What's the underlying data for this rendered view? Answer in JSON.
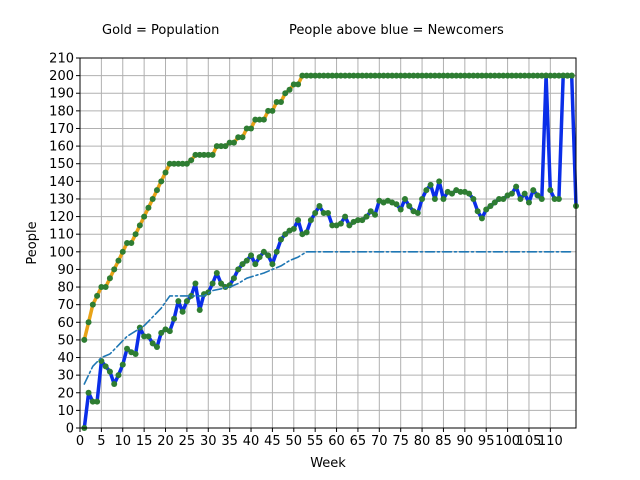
{
  "chart_data": {
    "type": "line",
    "annotations": [
      "Gold = Population",
      "People above blue = Newcomers"
    ],
    "xlabel": "Week",
    "ylabel": "People",
    "xlim": [
      0,
      116
    ],
    "ylim": [
      0,
      210
    ],
    "xticks": [
      0,
      5,
      10,
      15,
      20,
      25,
      30,
      35,
      40,
      45,
      50,
      55,
      60,
      65,
      70,
      75,
      80,
      85,
      90,
      95,
      100,
      105,
      110
    ],
    "yticks": [
      0,
      10,
      20,
      30,
      40,
      50,
      60,
      70,
      80,
      90,
      100,
      110,
      120,
      130,
      140,
      150,
      160,
      170,
      180,
      190,
      200,
      210
    ],
    "grid": true,
    "series": [
      {
        "role": "population",
        "color": "#e8a317",
        "marker_color": "#2e7d32",
        "points": [
          [
            1,
            50
          ],
          [
            2,
            60
          ],
          [
            3,
            70
          ],
          [
            4,
            75
          ],
          [
            5,
            80
          ],
          [
            6,
            80
          ],
          [
            7,
            85
          ],
          [
            8,
            90
          ],
          [
            9,
            95
          ],
          [
            10,
            100
          ],
          [
            11,
            105
          ],
          [
            12,
            105
          ],
          [
            13,
            110
          ],
          [
            14,
            115
          ],
          [
            15,
            120
          ],
          [
            16,
            125
          ],
          [
            17,
            130
          ],
          [
            18,
            135
          ],
          [
            19,
            140
          ],
          [
            20,
            145
          ],
          [
            21,
            150
          ],
          [
            22,
            150
          ],
          [
            23,
            150
          ],
          [
            24,
            150
          ],
          [
            25,
            150
          ],
          [
            26,
            152
          ],
          [
            27,
            155
          ],
          [
            28,
            155
          ],
          [
            29,
            155
          ],
          [
            30,
            155
          ],
          [
            31,
            155
          ],
          [
            32,
            160
          ],
          [
            33,
            160
          ],
          [
            34,
            160
          ],
          [
            35,
            162
          ],
          [
            36,
            162
          ],
          [
            37,
            165
          ],
          [
            38,
            165
          ],
          [
            39,
            170
          ],
          [
            40,
            170
          ],
          [
            41,
            175
          ],
          [
            42,
            175
          ],
          [
            43,
            175
          ],
          [
            44,
            180
          ],
          [
            45,
            180
          ],
          [
            46,
            185
          ],
          [
            47,
            185
          ],
          [
            48,
            190
          ],
          [
            49,
            192
          ],
          [
            50,
            195
          ],
          [
            51,
            195
          ],
          [
            52,
            200
          ],
          [
            53,
            200
          ],
          [
            54,
            200
          ],
          [
            55,
            200
          ],
          [
            56,
            200
          ],
          [
            57,
            200
          ],
          [
            58,
            200
          ],
          [
            59,
            200
          ],
          [
            60,
            200
          ],
          [
            61,
            200
          ],
          [
            62,
            200
          ],
          [
            63,
            200
          ],
          [
            64,
            200
          ],
          [
            65,
            200
          ],
          [
            66,
            200
          ],
          [
            67,
            200
          ],
          [
            68,
            200
          ],
          [
            69,
            200
          ],
          [
            70,
            200
          ],
          [
            71,
            200
          ],
          [
            72,
            200
          ],
          [
            73,
            200
          ],
          [
            74,
            200
          ],
          [
            75,
            200
          ],
          [
            76,
            200
          ],
          [
            77,
            200
          ],
          [
            78,
            200
          ],
          [
            79,
            200
          ],
          [
            80,
            200
          ],
          [
            81,
            200
          ],
          [
            82,
            200
          ],
          [
            83,
            200
          ],
          [
            84,
            200
          ],
          [
            85,
            200
          ],
          [
            86,
            200
          ],
          [
            87,
            200
          ],
          [
            88,
            200
          ],
          [
            89,
            200
          ],
          [
            90,
            200
          ],
          [
            91,
            200
          ],
          [
            92,
            200
          ],
          [
            93,
            200
          ],
          [
            94,
            200
          ],
          [
            95,
            200
          ],
          [
            96,
            200
          ],
          [
            97,
            200
          ],
          [
            98,
            200
          ],
          [
            99,
            200
          ],
          [
            100,
            200
          ],
          [
            101,
            200
          ],
          [
            102,
            200
          ],
          [
            103,
            200
          ],
          [
            104,
            200
          ],
          [
            105,
            200
          ],
          [
            106,
            200
          ],
          [
            107,
            200
          ],
          [
            108,
            200
          ],
          [
            109,
            200
          ],
          [
            110,
            200
          ],
          [
            111,
            200
          ],
          [
            112,
            200
          ],
          [
            113,
            200
          ],
          [
            114,
            200
          ],
          [
            115,
            200
          ]
        ]
      },
      {
        "role": "blue-line",
        "color": "#0a2ee8",
        "marker_color": "#2e7d32",
        "points": [
          [
            1,
            0
          ],
          [
            2,
            20
          ],
          [
            3,
            15
          ],
          [
            4,
            15
          ],
          [
            5,
            38
          ],
          [
            6,
            35
          ],
          [
            7,
            32
          ],
          [
            8,
            25
          ],
          [
            9,
            30
          ],
          [
            10,
            36
          ],
          [
            11,
            45
          ],
          [
            12,
            43
          ],
          [
            13,
            42
          ],
          [
            14,
            57
          ],
          [
            15,
            52
          ],
          [
            16,
            52
          ],
          [
            17,
            48
          ],
          [
            18,
            46
          ],
          [
            19,
            54
          ],
          [
            20,
            56
          ],
          [
            21,
            55
          ],
          [
            22,
            62
          ],
          [
            23,
            72
          ],
          [
            24,
            66
          ],
          [
            25,
            72
          ],
          [
            26,
            75
          ],
          [
            27,
            82
          ],
          [
            28,
            67
          ],
          [
            29,
            76
          ],
          [
            30,
            77
          ],
          [
            31,
            82
          ],
          [
            32,
            88
          ],
          [
            33,
            82
          ],
          [
            34,
            80
          ],
          [
            35,
            81
          ],
          [
            36,
            85
          ],
          [
            37,
            90
          ],
          [
            38,
            93
          ],
          [
            39,
            95
          ],
          [
            40,
            98
          ],
          [
            41,
            93
          ],
          [
            42,
            97
          ],
          [
            43,
            100
          ],
          [
            44,
            98
          ],
          [
            45,
            93
          ],
          [
            46,
            100
          ],
          [
            47,
            107
          ],
          [
            48,
            110
          ],
          [
            49,
            112
          ],
          [
            50,
            113
          ],
          [
            51,
            118
          ],
          [
            52,
            110
          ],
          [
            53,
            111
          ],
          [
            54,
            118
          ],
          [
            55,
            122
          ],
          [
            56,
            126
          ],
          [
            57,
            122
          ],
          [
            58,
            122
          ],
          [
            59,
            115
          ],
          [
            60,
            115
          ],
          [
            61,
            116
          ],
          [
            62,
            120
          ],
          [
            63,
            115
          ],
          [
            64,
            117
          ],
          [
            65,
            118
          ],
          [
            66,
            118
          ],
          [
            67,
            120
          ],
          [
            68,
            123
          ],
          [
            69,
            121
          ],
          [
            70,
            129
          ],
          [
            71,
            128
          ],
          [
            72,
            129
          ],
          [
            73,
            128
          ],
          [
            74,
            127
          ],
          [
            75,
            124
          ],
          [
            76,
            130
          ],
          [
            77,
            126
          ],
          [
            78,
            123
          ],
          [
            79,
            122
          ],
          [
            80,
            130
          ],
          [
            81,
            135
          ],
          [
            82,
            138
          ],
          [
            83,
            130
          ],
          [
            84,
            140
          ],
          [
            85,
            130
          ],
          [
            86,
            134
          ],
          [
            87,
            133
          ],
          [
            88,
            135
          ],
          [
            89,
            134
          ],
          [
            90,
            134
          ],
          [
            91,
            133
          ],
          [
            92,
            130
          ],
          [
            93,
            123
          ],
          [
            94,
            119
          ],
          [
            95,
            124
          ],
          [
            96,
            126
          ],
          [
            97,
            128
          ],
          [
            98,
            130
          ],
          [
            99,
            130
          ],
          [
            100,
            132
          ],
          [
            101,
            133
          ],
          [
            102,
            137
          ],
          [
            103,
            130
          ],
          [
            104,
            133
          ],
          [
            105,
            128
          ],
          [
            106,
            135
          ],
          [
            107,
            132
          ],
          [
            108,
            130
          ],
          [
            109,
            200
          ],
          [
            110,
            135
          ],
          [
            111,
            130
          ],
          [
            112,
            130
          ],
          [
            113,
            200
          ],
          [
            114,
            200
          ],
          [
            115,
            200
          ],
          [
            116,
            126
          ]
        ]
      },
      {
        "role": "baseline",
        "color": "#1f77b4",
        "style": "dash-dot",
        "points": [
          [
            1,
            25
          ],
          [
            3,
            35
          ],
          [
            5,
            40
          ],
          [
            7,
            42
          ],
          [
            9,
            47
          ],
          [
            11,
            52
          ],
          [
            13,
            55
          ],
          [
            15,
            58
          ],
          [
            17,
            63
          ],
          [
            19,
            68
          ],
          [
            21,
            75
          ],
          [
            25,
            75
          ],
          [
            27,
            75
          ],
          [
            29,
            75
          ],
          [
            31,
            78
          ],
          [
            35,
            80
          ],
          [
            37,
            82
          ],
          [
            39,
            85
          ],
          [
            43,
            88
          ],
          [
            47,
            92
          ],
          [
            49,
            95
          ],
          [
            51,
            97
          ],
          [
            53,
            100
          ],
          [
            115,
            100
          ]
        ]
      }
    ]
  }
}
